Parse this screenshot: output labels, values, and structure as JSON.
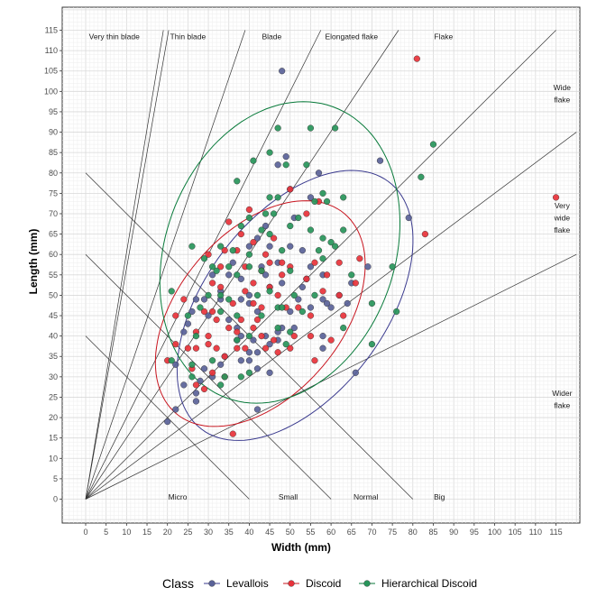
{
  "chart_data": {
    "type": "scatter",
    "xlabel": "Width (mm)",
    "ylabel": "Length (mm)",
    "xlim": [
      -4,
      120
    ],
    "ylim": [
      -5,
      120
    ],
    "xticks": [
      0,
      5,
      10,
      15,
      20,
      25,
      30,
      35,
      40,
      45,
      50,
      55,
      60,
      65,
      70,
      75,
      80,
      85,
      90,
      95,
      100,
      105,
      110,
      115
    ],
    "yticks": [
      0,
      5,
      10,
      15,
      20,
      25,
      30,
      35,
      40,
      45,
      50,
      55,
      60,
      65,
      70,
      75,
      80,
      85,
      90,
      95,
      100,
      105,
      110,
      115
    ],
    "grid": true,
    "legend": {
      "title": "Class",
      "position": "bottom",
      "entries": [
        "Levallois",
        "Discoid",
        "Hierarchical Discoid"
      ]
    },
    "region_labels": [
      {
        "text": "Very thin blade",
        "x": 7,
        "y": 113.5
      },
      {
        "text": "Thin blade",
        "x": 25,
        "y": 113.5
      },
      {
        "text": "Blade",
        "x": 45.5,
        "y": 113.5
      },
      {
        "text": "Elongated flake",
        "x": 65,
        "y": 113.5
      },
      {
        "text": "Flake",
        "x": 87.5,
        "y": 113.5
      },
      {
        "text": "Wide",
        "x": 116.5,
        "y": 101
      },
      {
        "text": "flake",
        "x": 116.5,
        "y": 98
      },
      {
        "text": "Very",
        "x": 116.5,
        "y": 72
      },
      {
        "text": "wide",
        "x": 116.5,
        "y": 69
      },
      {
        "text": "flake",
        "x": 116.5,
        "y": 66
      },
      {
        "text": "Wider",
        "x": 116.5,
        "y": 26
      },
      {
        "text": "flake",
        "x": 116.5,
        "y": 23
      },
      {
        "text": "Micro",
        "x": 22.5,
        "y": 0.5
      },
      {
        "text": "Small",
        "x": 49.5,
        "y": 0.5
      },
      {
        "text": "Normal",
        "x": 68.5,
        "y": 0.5
      },
      {
        "text": "Big",
        "x": 86.5,
        "y": 0.5
      }
    ],
    "ratio_lines": [
      {
        "x2": 19,
        "y2": 115
      },
      {
        "x2": 20.3,
        "y2": 115
      },
      {
        "x2": 39,
        "y2": 115
      },
      {
        "x2": 57.5,
        "y2": 115
      },
      {
        "x2": 76.5,
        "y2": 115
      },
      {
        "x2": 115,
        "y2": 115
      },
      {
        "x2": 120,
        "y2": 90
      },
      {
        "x2": 120,
        "y2": 60
      }
    ],
    "size_lines": [
      {
        "x1": 0,
        "y1": 40,
        "x2": 40,
        "y2": 0
      },
      {
        "x1": 0,
        "y1": 60,
        "x2": 60,
        "y2": 0
      },
      {
        "x1": 0,
        "y1": 80,
        "x2": 80,
        "y2": 0
      }
    ],
    "series": [
      {
        "name": "Levallois",
        "color": "#5a6298",
        "ellipse": {
          "cx": 51.2,
          "cy": 47.5,
          "rx_axis": 38,
          "ry_axis": 22,
          "angle": 53,
          "color": "#3a3a8e"
        },
        "points": [
          [
            48,
            105
          ],
          [
            47,
            82
          ],
          [
            49,
            84
          ],
          [
            57,
            80
          ],
          [
            72,
            83
          ],
          [
            79,
            69
          ],
          [
            50,
            76
          ],
          [
            55,
            74
          ],
          [
            51,
            69
          ],
          [
            44,
            67
          ],
          [
            42,
            64
          ],
          [
            40,
            62
          ],
          [
            45,
            62
          ],
          [
            50,
            62
          ],
          [
            53,
            61
          ],
          [
            47,
            58
          ],
          [
            43,
            57
          ],
          [
            55,
            57
          ],
          [
            58,
            55
          ],
          [
            54,
            54
          ],
          [
            53,
            52
          ],
          [
            48,
            53
          ],
          [
            45,
            52
          ],
          [
            58,
            49
          ],
          [
            52,
            49
          ],
          [
            59,
            48
          ],
          [
            62,
            50
          ],
          [
            65,
            53
          ],
          [
            69,
            57
          ],
          [
            64,
            48
          ],
          [
            60,
            47
          ],
          [
            55,
            47
          ],
          [
            50,
            46
          ],
          [
            42,
            46
          ],
          [
            40,
            48
          ],
          [
            38,
            49
          ],
          [
            33,
            49
          ],
          [
            29,
            49
          ],
          [
            27,
            49
          ],
          [
            26,
            46
          ],
          [
            25,
            43
          ],
          [
            24,
            41
          ],
          [
            30,
            45
          ],
          [
            35,
            44
          ],
          [
            37,
            42
          ],
          [
            38,
            40
          ],
          [
            41,
            39
          ],
          [
            44,
            40
          ],
          [
            47,
            39
          ],
          [
            48,
            42
          ],
          [
            51,
            42
          ],
          [
            58,
            37
          ],
          [
            58,
            40
          ],
          [
            47,
            41
          ],
          [
            45,
            38
          ],
          [
            42,
            36
          ],
          [
            40,
            36
          ],
          [
            45,
            31
          ],
          [
            42,
            32
          ],
          [
            40,
            34
          ],
          [
            38,
            34
          ],
          [
            34,
            35
          ],
          [
            33,
            33
          ],
          [
            31,
            30
          ],
          [
            29,
            32
          ],
          [
            28,
            29
          ],
          [
            27,
            26
          ],
          [
            27,
            24
          ],
          [
            24,
            28
          ],
          [
            22,
            33
          ],
          [
            22,
            22
          ],
          [
            20,
            19
          ],
          [
            42,
            22
          ],
          [
            37,
            39
          ],
          [
            35,
            55
          ],
          [
            38,
            54
          ],
          [
            44,
            55
          ],
          [
            40,
            50
          ],
          [
            66,
            31
          ],
          [
            36,
            58
          ],
          [
            31,
            55
          ],
          [
            33,
            51
          ]
        ]
      },
      {
        "name": "Discoid",
        "color": "#e8323a",
        "ellipse": {
          "cx": 42.7,
          "cy": 45.5,
          "rx_axis": 32,
          "ry_axis": 20,
          "angle": 50,
          "color": "#c8141e"
        },
        "points": [
          [
            81,
            108
          ],
          [
            115,
            74
          ],
          [
            83,
            65
          ],
          [
            50,
            76
          ],
          [
            57,
            73
          ],
          [
            54,
            70
          ],
          [
            40,
            71
          ],
          [
            35,
            68
          ],
          [
            38,
            65
          ],
          [
            41,
            63
          ],
          [
            46,
            64
          ],
          [
            34,
            61
          ],
          [
            37,
            61
          ],
          [
            44,
            60
          ],
          [
            45,
            58
          ],
          [
            48,
            58
          ],
          [
            50,
            57
          ],
          [
            56,
            58
          ],
          [
            62,
            58
          ],
          [
            30,
            60
          ],
          [
            33,
            57
          ],
          [
            39,
            57
          ],
          [
            43,
            56
          ],
          [
            48,
            55
          ],
          [
            54,
            54
          ],
          [
            59,
            55
          ],
          [
            67,
            59
          ],
          [
            41,
            53
          ],
          [
            45,
            52
          ],
          [
            31,
            53
          ],
          [
            33,
            52
          ],
          [
            39,
            51
          ],
          [
            47,
            50
          ],
          [
            58,
            51
          ],
          [
            62,
            50
          ],
          [
            66,
            53
          ],
          [
            36,
            48
          ],
          [
            41,
            48
          ],
          [
            43,
            47
          ],
          [
            49,
            47
          ],
          [
            52,
            47
          ],
          [
            55,
            45
          ],
          [
            63,
            45
          ],
          [
            31,
            46
          ],
          [
            29,
            46
          ],
          [
            24,
            49
          ],
          [
            22,
            45
          ],
          [
            32,
            44
          ],
          [
            35,
            42
          ],
          [
            37,
            41
          ],
          [
            41,
            42
          ],
          [
            43,
            40
          ],
          [
            46,
            39
          ],
          [
            51,
            40
          ],
          [
            55,
            40
          ],
          [
            60,
            39
          ],
          [
            22,
            38
          ],
          [
            25,
            37
          ],
          [
            27,
            37
          ],
          [
            30,
            38
          ],
          [
            32,
            37
          ],
          [
            34,
            35
          ],
          [
            37,
            37
          ],
          [
            39,
            37
          ],
          [
            44,
            37
          ],
          [
            47,
            36
          ],
          [
            50,
            37
          ],
          [
            56,
            34
          ],
          [
            20,
            34
          ],
          [
            26,
            32
          ],
          [
            31,
            31
          ],
          [
            34,
            30
          ],
          [
            27,
            28
          ],
          [
            29,
            27
          ],
          [
            36,
            16
          ],
          [
            38,
            44
          ],
          [
            42,
            44
          ],
          [
            30,
            40
          ],
          [
            27,
            41
          ]
        ]
      },
      {
        "name": "Hierarchical Discoid",
        "color": "#27955a",
        "ellipse": {
          "cx": 47.5,
          "cy": 60.5,
          "rx_axis": 38,
          "ry_axis": 28,
          "angle": 70,
          "color": "#087a3a"
        },
        "points": [
          [
            47,
            91
          ],
          [
            55,
            91
          ],
          [
            61,
            91
          ],
          [
            85,
            87
          ],
          [
            45,
            85
          ],
          [
            49,
            82
          ],
          [
            54,
            82
          ],
          [
            41,
            83
          ],
          [
            82,
            79
          ],
          [
            37,
            78
          ],
          [
            45,
            74
          ],
          [
            47,
            74
          ],
          [
            58,
            75
          ],
          [
            63,
            74
          ],
          [
            40,
            69
          ],
          [
            44,
            70
          ],
          [
            46,
            70
          ],
          [
            52,
            69
          ],
          [
            56,
            73
          ],
          [
            59,
            73
          ],
          [
            38,
            67
          ],
          [
            43,
            66
          ],
          [
            45,
            65
          ],
          [
            50,
            67
          ],
          [
            55,
            66
          ],
          [
            58,
            64
          ],
          [
            60,
            63
          ],
          [
            61,
            62
          ],
          [
            63,
            66
          ],
          [
            26,
            62
          ],
          [
            33,
            62
          ],
          [
            36,
            61
          ],
          [
            40,
            60
          ],
          [
            48,
            61
          ],
          [
            57,
            61
          ],
          [
            29,
            59
          ],
          [
            31,
            57
          ],
          [
            35,
            57
          ],
          [
            40,
            57
          ],
          [
            43,
            56
          ],
          [
            50,
            56
          ],
          [
            58,
            59
          ],
          [
            75,
            57
          ],
          [
            32,
            56
          ],
          [
            37,
            55
          ],
          [
            45,
            51
          ],
          [
            51,
            50
          ],
          [
            56,
            50
          ],
          [
            65,
            55
          ],
          [
            21,
            51
          ],
          [
            30,
            50
          ],
          [
            33,
            50
          ],
          [
            35,
            49
          ],
          [
            42,
            50
          ],
          [
            47,
            47
          ],
          [
            70,
            48
          ],
          [
            76,
            46
          ],
          [
            25,
            45
          ],
          [
            28,
            47
          ],
          [
            33,
            46
          ],
          [
            37,
            45
          ],
          [
            43,
            45
          ],
          [
            48,
            47
          ],
          [
            53,
            46
          ],
          [
            27,
            40
          ],
          [
            37,
            39
          ],
          [
            40,
            40
          ],
          [
            49,
            38
          ],
          [
            50,
            41
          ],
          [
            47,
            42
          ],
          [
            63,
            42
          ],
          [
            21,
            34
          ],
          [
            26,
            33
          ],
          [
            31,
            34
          ],
          [
            34,
            30
          ],
          [
            40,
            31
          ],
          [
            33,
            28
          ],
          [
            26,
            30
          ],
          [
            38,
            30
          ],
          [
            70,
            38
          ]
        ]
      }
    ]
  }
}
